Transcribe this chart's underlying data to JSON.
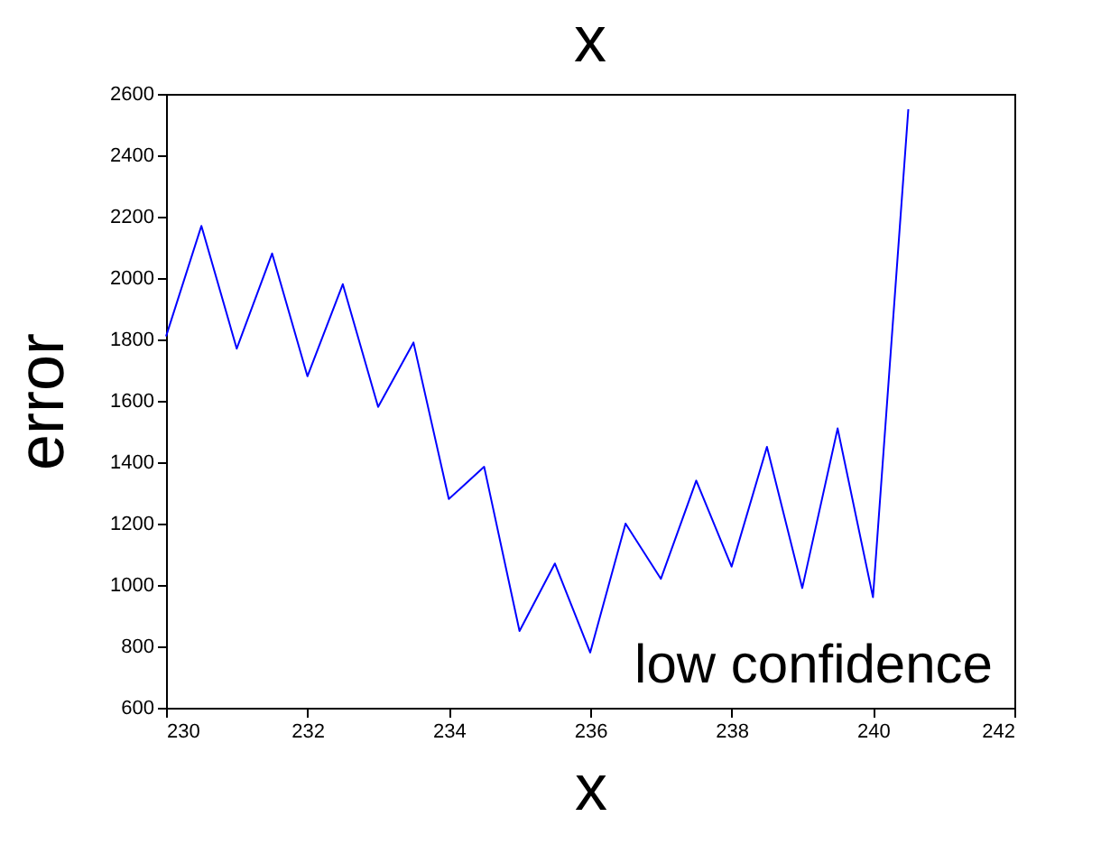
{
  "chart_data": {
    "type": "line",
    "title": "x",
    "xlabel": "x",
    "ylabel": "error",
    "x": [
      230,
      230.5,
      231,
      231.5,
      232,
      232.5,
      233,
      233.5,
      234,
      234.5,
      235,
      235.5,
      236,
      236.5,
      237,
      237.5,
      238,
      238.5,
      239,
      239.5,
      240,
      240.5
    ],
    "series": [
      {
        "color": "#0000ff",
        "values": [
          1810,
          2170,
          1770,
          2080,
          1680,
          1980,
          1580,
          1790,
          1280,
          1385,
          850,
          1070,
          780,
          1200,
          1020,
          1340,
          1060,
          1450,
          990,
          1510,
          960,
          2550
        ]
      }
    ],
    "xlim": [
      230,
      242
    ],
    "xticks": [
      230,
      232,
      234,
      236,
      238,
      240,
      242
    ],
    "ylim": [
      600,
      2600
    ],
    "yticks": [
      600,
      800,
      1000,
      1200,
      1400,
      1600,
      1800,
      2000,
      2200,
      2400,
      2600
    ],
    "annotations": [
      "low confidence"
    ],
    "grid": false,
    "legend": false,
    "marker": "none",
    "line_style": "solid"
  }
}
